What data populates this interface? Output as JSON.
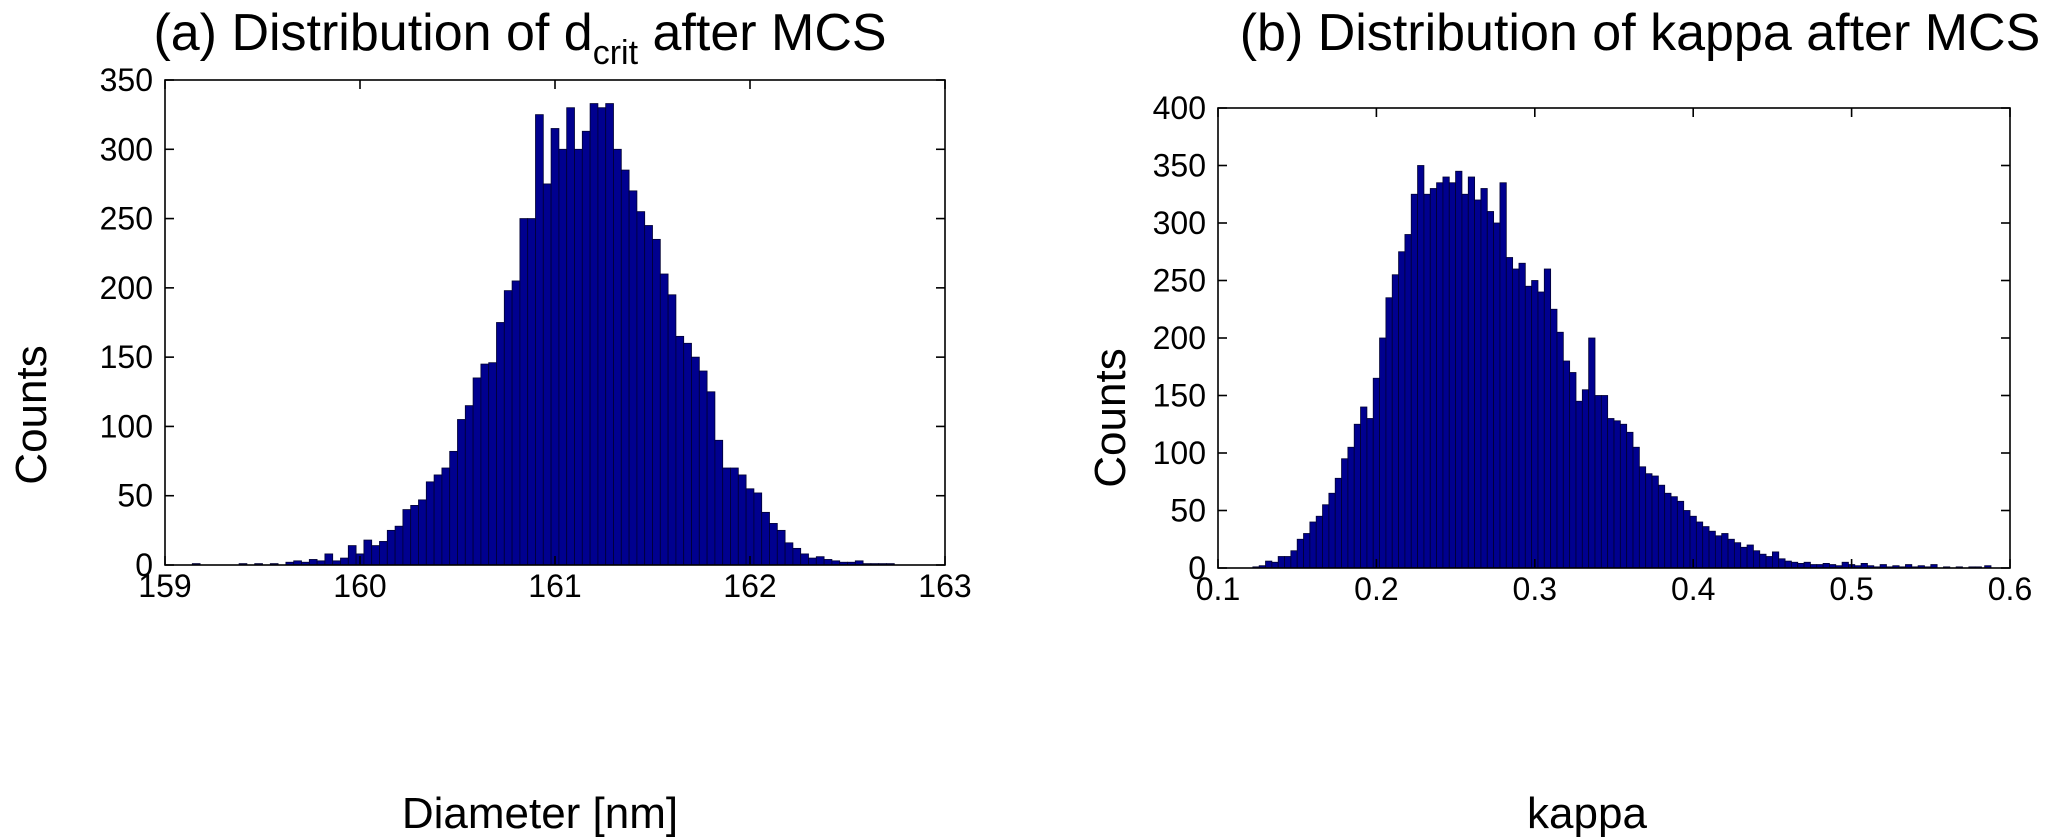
{
  "chart_data": [
    {
      "type": "bar",
      "title_main": "(a) Distribution of d",
      "title_sub": "crit",
      "title_tail": " after MCS",
      "xlabel": "Diameter [nm]",
      "ylabel": "Counts",
      "xlim": [
        159,
        163
      ],
      "ylim": [
        0,
        350
      ],
      "xticks": [
        "159",
        "160",
        "161",
        "162",
        "163"
      ],
      "yticks": [
        "0",
        "50",
        "100",
        "150",
        "200",
        "250",
        "300",
        "350"
      ],
      "bin_width": 0.04,
      "bins": [
        [
          159.14,
          1
        ],
        [
          159.38,
          1
        ],
        [
          159.46,
          1
        ],
        [
          159.54,
          1
        ],
        [
          159.62,
          2
        ],
        [
          159.66,
          3
        ],
        [
          159.7,
          2
        ],
        [
          159.74,
          4
        ],
        [
          159.78,
          3
        ],
        [
          159.82,
          8
        ],
        [
          159.86,
          3
        ],
        [
          159.9,
          5
        ],
        [
          159.94,
          14
        ],
        [
          159.98,
          8
        ],
        [
          160.02,
          18
        ],
        [
          160.06,
          14
        ],
        [
          160.1,
          17
        ],
        [
          160.14,
          25
        ],
        [
          160.18,
          28
        ],
        [
          160.22,
          40
        ],
        [
          160.26,
          43
        ],
        [
          160.3,
          47
        ],
        [
          160.34,
          60
        ],
        [
          160.38,
          65
        ],
        [
          160.42,
          70
        ],
        [
          160.46,
          82
        ],
        [
          160.5,
          105
        ],
        [
          160.54,
          115
        ],
        [
          160.58,
          135
        ],
        [
          160.62,
          145
        ],
        [
          160.66,
          146
        ],
        [
          160.7,
          175
        ],
        [
          160.74,
          198
        ],
        [
          160.78,
          205
        ],
        [
          160.82,
          250
        ],
        [
          160.86,
          250
        ],
        [
          160.9,
          325
        ],
        [
          160.94,
          275
        ],
        [
          160.98,
          315
        ],
        [
          161.02,
          300
        ],
        [
          161.06,
          330
        ],
        [
          161.1,
          300
        ],
        [
          161.14,
          313
        ],
        [
          161.18,
          333
        ],
        [
          161.22,
          330
        ],
        [
          161.26,
          333
        ],
        [
          161.3,
          300
        ],
        [
          161.34,
          285
        ],
        [
          161.38,
          270
        ],
        [
          161.42,
          255
        ],
        [
          161.46,
          245
        ],
        [
          161.5,
          235
        ],
        [
          161.54,
          210
        ],
        [
          161.58,
          195
        ],
        [
          161.62,
          165
        ],
        [
          161.66,
          160
        ],
        [
          161.7,
          150
        ],
        [
          161.74,
          140
        ],
        [
          161.78,
          125
        ],
        [
          161.82,
          90
        ],
        [
          161.86,
          70
        ],
        [
          161.9,
          70
        ],
        [
          161.94,
          65
        ],
        [
          161.98,
          55
        ],
        [
          162.02,
          52
        ],
        [
          162.06,
          38
        ],
        [
          162.1,
          30
        ],
        [
          162.14,
          25
        ],
        [
          162.18,
          16
        ],
        [
          162.22,
          12
        ],
        [
          162.26,
          8
        ],
        [
          162.3,
          5
        ],
        [
          162.34,
          6
        ],
        [
          162.38,
          4
        ],
        [
          162.42,
          3
        ],
        [
          162.46,
          2
        ],
        [
          162.5,
          2
        ],
        [
          162.54,
          3
        ],
        [
          162.58,
          1
        ],
        [
          162.62,
          1
        ],
        [
          162.66,
          1
        ],
        [
          162.7,
          1
        ]
      ]
    },
    {
      "type": "bar",
      "title_main": "(b) Distribution of kappa after MCS",
      "xlabel": "kappa",
      "ylabel": "Counts",
      "xlim": [
        0.1,
        0.6
      ],
      "ylim": [
        0,
        400
      ],
      "xticks": [
        "0.1",
        "0.2",
        "0.3",
        "0.4",
        "0.5",
        "0.6"
      ],
      "yticks": [
        "0",
        "50",
        "100",
        "150",
        "200",
        "250",
        "300",
        "350",
        "400"
      ],
      "bin_width": 0.004,
      "bins": [
        [
          0.122,
          1
        ],
        [
          0.126,
          2
        ],
        [
          0.13,
          6
        ],
        [
          0.134,
          5
        ],
        [
          0.138,
          10
        ],
        [
          0.142,
          10
        ],
        [
          0.146,
          15
        ],
        [
          0.15,
          25
        ],
        [
          0.154,
          30
        ],
        [
          0.158,
          40
        ],
        [
          0.162,
          45
        ],
        [
          0.166,
          55
        ],
        [
          0.17,
          65
        ],
        [
          0.174,
          78
        ],
        [
          0.178,
          95
        ],
        [
          0.182,
          105
        ],
        [
          0.186,
          125
        ],
        [
          0.19,
          140
        ],
        [
          0.194,
          130
        ],
        [
          0.198,
          165
        ],
        [
          0.202,
          200
        ],
        [
          0.206,
          235
        ],
        [
          0.21,
          255
        ],
        [
          0.214,
          275
        ],
        [
          0.218,
          290
        ],
        [
          0.222,
          325
        ],
        [
          0.226,
          350
        ],
        [
          0.23,
          325
        ],
        [
          0.234,
          330
        ],
        [
          0.238,
          335
        ],
        [
          0.242,
          340
        ],
        [
          0.246,
          335
        ],
        [
          0.25,
          345
        ],
        [
          0.254,
          325
        ],
        [
          0.258,
          340
        ],
        [
          0.262,
          320
        ],
        [
          0.266,
          330
        ],
        [
          0.27,
          310
        ],
        [
          0.274,
          300
        ],
        [
          0.278,
          335
        ],
        [
          0.282,
          270
        ],
        [
          0.286,
          260
        ],
        [
          0.29,
          265
        ],
        [
          0.294,
          245
        ],
        [
          0.298,
          250
        ],
        [
          0.302,
          240
        ],
        [
          0.306,
          260
        ],
        [
          0.31,
          225
        ],
        [
          0.314,
          205
        ],
        [
          0.318,
          180
        ],
        [
          0.322,
          170
        ],
        [
          0.326,
          145
        ],
        [
          0.33,
          155
        ],
        [
          0.334,
          200
        ],
        [
          0.338,
          150
        ],
        [
          0.342,
          150
        ],
        [
          0.346,
          130
        ],
        [
          0.35,
          128
        ],
        [
          0.354,
          125
        ],
        [
          0.358,
          118
        ],
        [
          0.362,
          105
        ],
        [
          0.366,
          88
        ],
        [
          0.37,
          82
        ],
        [
          0.374,
          80
        ],
        [
          0.378,
          72
        ],
        [
          0.382,
          65
        ],
        [
          0.386,
          62
        ],
        [
          0.39,
          58
        ],
        [
          0.394,
          50
        ],
        [
          0.398,
          45
        ],
        [
          0.402,
          40
        ],
        [
          0.406,
          36
        ],
        [
          0.41,
          32
        ],
        [
          0.414,
          28
        ],
        [
          0.418,
          30
        ],
        [
          0.422,
          25
        ],
        [
          0.426,
          22
        ],
        [
          0.43,
          18
        ],
        [
          0.434,
          20
        ],
        [
          0.438,
          15
        ],
        [
          0.442,
          12
        ],
        [
          0.446,
          10
        ],
        [
          0.45,
          14
        ],
        [
          0.454,
          8
        ],
        [
          0.458,
          6
        ],
        [
          0.462,
          5
        ],
        [
          0.466,
          4
        ],
        [
          0.47,
          5
        ],
        [
          0.474,
          3
        ],
        [
          0.478,
          3
        ],
        [
          0.482,
          4
        ],
        [
          0.486,
          3
        ],
        [
          0.49,
          2
        ],
        [
          0.494,
          5
        ],
        [
          0.498,
          3
        ],
        [
          0.502,
          2
        ],
        [
          0.506,
          4
        ],
        [
          0.51,
          2
        ],
        [
          0.514,
          1
        ],
        [
          0.518,
          3
        ],
        [
          0.522,
          1
        ],
        [
          0.526,
          2
        ],
        [
          0.53,
          1
        ],
        [
          0.534,
          3
        ],
        [
          0.538,
          1
        ],
        [
          0.542,
          2
        ],
        [
          0.546,
          1
        ],
        [
          0.55,
          3
        ],
        [
          0.558,
          1
        ],
        [
          0.566,
          1
        ],
        [
          0.574,
          1
        ],
        [
          0.578,
          1
        ],
        [
          0.584,
          2
        ]
      ]
    }
  ]
}
